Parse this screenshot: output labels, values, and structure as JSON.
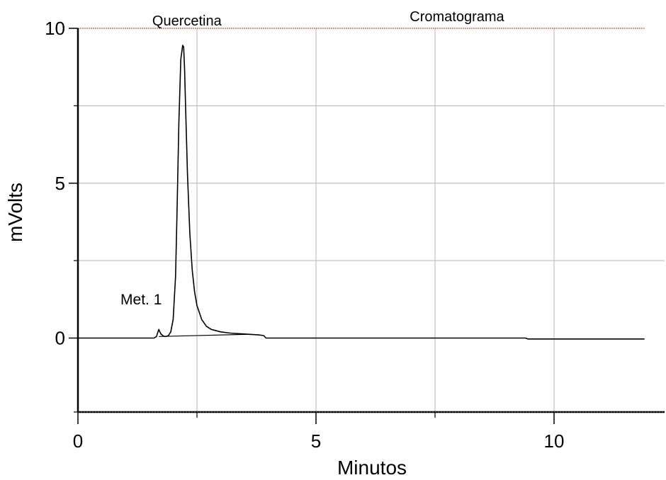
{
  "chart_data": {
    "type": "line",
    "title": "Cromatograma",
    "xlabel": "Minutos",
    "ylabel": "mVolts",
    "xlim": [
      0,
      12.3
    ],
    "ylim": [
      -2.4,
      10
    ],
    "x_ticks": [
      0,
      5,
      10
    ],
    "y_ticks": [
      0,
      5,
      10
    ],
    "x_minor_gridlines": [
      2.5,
      5,
      7.5,
      10
    ],
    "y_minor_gridlines": [
      2.5,
      5,
      7.5
    ],
    "grid": true,
    "colors": {
      "trace": "#000000",
      "grid": "#b4b4b4",
      "reference_line": "#c0504d"
    },
    "annotations": [
      {
        "text": "Quercetina",
        "x": 2.2,
        "y": 9.45
      },
      {
        "text": "Met. 1",
        "x": 1.7,
        "y": 0.28
      }
    ],
    "series": [
      {
        "x": [
          0,
          1.6,
          1.65,
          1.68,
          1.7,
          1.72,
          1.75,
          1.8,
          1.85,
          1.9,
          1.95,
          2.0,
          2.05,
          2.08,
          2.12,
          2.16,
          2.2,
          2.22,
          2.24,
          2.26,
          2.3,
          2.35,
          2.4,
          2.45,
          2.5,
          2.6,
          2.7,
          2.8,
          3.0,
          3.2,
          3.5,
          3.8,
          3.9,
          3.95,
          4.2,
          6,
          8,
          9.4,
          9.45,
          10,
          11.9
        ],
        "values": [
          0,
          0,
          0.05,
          0.2,
          0.28,
          0.2,
          0.12,
          0.06,
          0.05,
          0.08,
          0.2,
          0.6,
          2.0,
          4.0,
          7.0,
          9.0,
          9.45,
          9.4,
          8.7,
          7.5,
          5.3,
          3.4,
          2.2,
          1.5,
          1.05,
          0.6,
          0.38,
          0.28,
          0.2,
          0.16,
          0.13,
          0.1,
          0.08,
          0.0,
          0.0,
          0.0,
          0.0,
          0.0,
          -0.03,
          -0.03,
          -0.03
        ]
      }
    ],
    "baseline": {
      "x": [
        1.7,
        3.55
      ],
      "values": [
        0.05,
        0.12
      ]
    }
  }
}
